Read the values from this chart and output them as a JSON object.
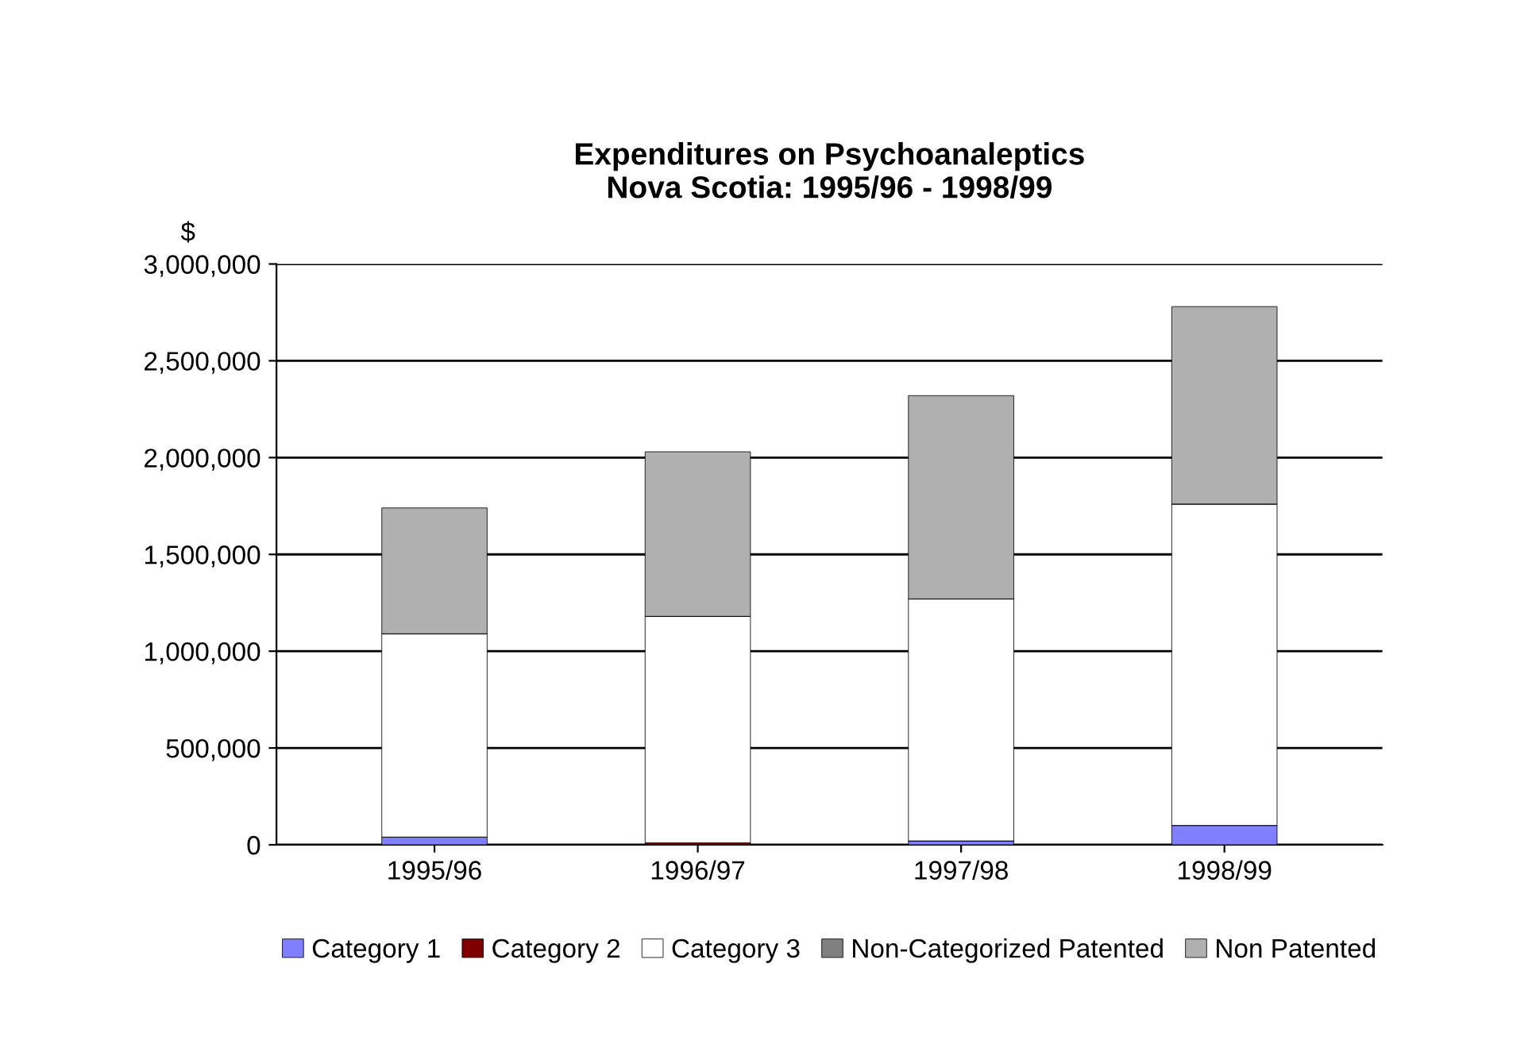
{
  "chart_data": {
    "type": "bar",
    "title": "Expenditures on Psychoanaleptics\nNova Scotia: 1995/96 - 1998/99",
    "ylabel": "$",
    "categories": [
      "1995/96",
      "1996/97",
      "1997/98",
      "1998/99"
    ],
    "stacked": true,
    "series": [
      {
        "name": "Category 1",
        "color": "#8080ff",
        "values": [
          40000,
          0,
          20000,
          100000
        ]
      },
      {
        "name": "Category 2",
        "color": "#800000",
        "values": [
          0,
          10000,
          0,
          0
        ]
      },
      {
        "name": "Category 3",
        "color": "#ffffff",
        "values": [
          1050000,
          1170000,
          1250000,
          1660000
        ]
      },
      {
        "name": "Non-Categorized Patented",
        "color": "#808080",
        "values": [
          0,
          0,
          0,
          0
        ]
      },
      {
        "name": "Non Patented",
        "color": "#b0b0b0",
        "values": [
          650000,
          850000,
          1050000,
          1020000
        ]
      }
    ],
    "ylim": [
      0,
      3000000
    ],
    "yticks": [
      {
        "value": 0,
        "label": "0"
      },
      {
        "value": 500000,
        "label": "500,000"
      },
      {
        "value": 1000000,
        "label": "1,000,000"
      },
      {
        "value": 1500000,
        "label": "1,500,000"
      },
      {
        "value": 2000000,
        "label": "2,000,000"
      },
      {
        "value": 2500000,
        "label": "2,500,000"
      },
      {
        "value": 3000000,
        "label": "3,000,000"
      }
    ],
    "grid": "y",
    "legend": "bottom"
  }
}
